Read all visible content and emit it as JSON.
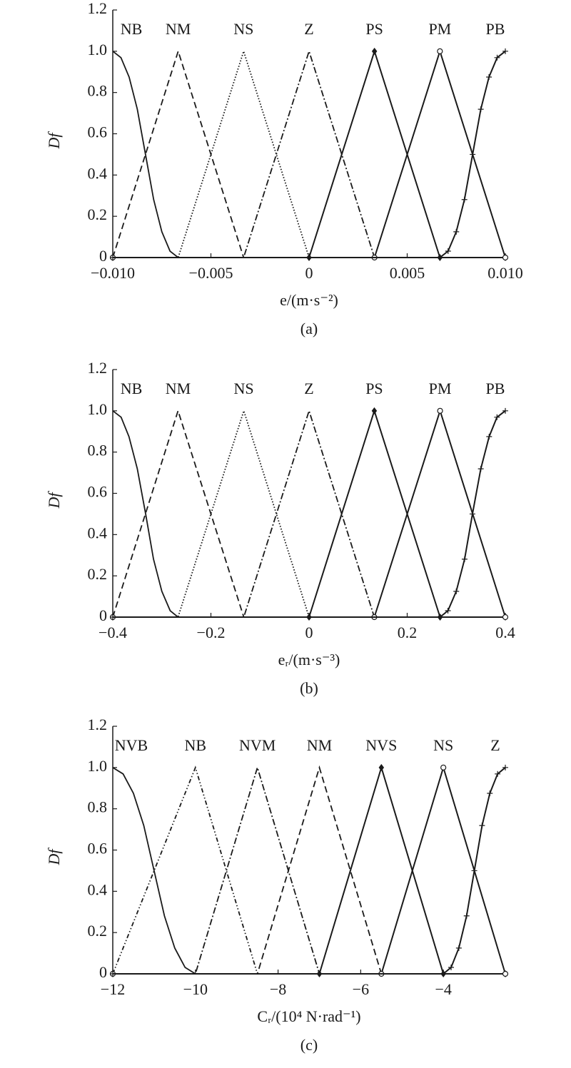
{
  "chart_data": [
    {
      "type": "line",
      "y_label": "Df",
      "x_label": "e/(m·s⁻²)",
      "caption": "(a)",
      "color": "#1a1a1a",
      "xlim": [
        -0.01,
        0.01
      ],
      "ylim": [
        0,
        1.2
      ],
      "xticks": [
        {
          "value": -0.01,
          "label": "−0.010"
        },
        {
          "value": -0.005,
          "label": "−0.005"
        },
        0,
        0.005,
        {
          "value": 0.01,
          "label": "0.010"
        }
      ],
      "yticks": [
        0,
        0.2,
        0.4,
        0.6,
        0.8,
        {
          "value": 1,
          "label": "1.0"
        },
        {
          "value": 1.2,
          "label": "1.2"
        }
      ],
      "series": [
        {
          "name": "NB",
          "style": "solid",
          "x": [
            -0.01,
            -0.009583,
            -0.009167,
            -0.00875,
            -0.008333,
            -0.007917,
            -0.0075,
            -0.007083,
            -0.006667,
            0.01
          ],
          "values": [
            1,
            0.969,
            0.875,
            0.719,
            0.5,
            0.281,
            0.125,
            0.031,
            0,
            0
          ]
        },
        {
          "name": "NM",
          "style": "dashed",
          "x": [
            -0.01,
            -0.006667,
            -0.003333,
            0.01
          ],
          "values": [
            0,
            1,
            0,
            0
          ]
        },
        {
          "name": "NS",
          "style": "dotted",
          "x": [
            -0.01,
            -0.006667,
            -0.003333,
            0,
            0.01
          ],
          "values": [
            0,
            0,
            1,
            0,
            0
          ]
        },
        {
          "name": "Z",
          "style": "dashdot",
          "x": [
            -0.01,
            -0.003333,
            0,
            0.003333,
            0.01
          ],
          "values": [
            0,
            0,
            1,
            0,
            0
          ]
        },
        {
          "name": "PS",
          "style": "solid",
          "marker": "diamond",
          "x": [
            -0.01,
            0,
            0.003333,
            0.006667,
            0.01
          ],
          "values": [
            0,
            0,
            1,
            0,
            0
          ]
        },
        {
          "name": "PM",
          "style": "solid",
          "marker": "circle",
          "x": [
            -0.01,
            0.003333,
            0.006667,
            0.01
          ],
          "values": [
            0,
            0,
            1,
            0
          ]
        },
        {
          "name": "PB",
          "style": "solid",
          "marker": "plus",
          "x": [
            -0.01,
            0.006667,
            0.007083,
            0.0075,
            0.007917,
            0.008333,
            0.00875,
            0.009167,
            0.009583,
            0.01
          ],
          "values": [
            0,
            0,
            0.031,
            0.125,
            0.281,
            0.5,
            0.719,
            0.875,
            0.969,
            1
          ]
        }
      ]
    },
    {
      "type": "line",
      "y_label": "Df",
      "x_label": "eᵣ/(m·s⁻³)",
      "caption": "(b)",
      "color": "#1a1a1a",
      "xlim": [
        -0.4,
        0.4
      ],
      "ylim": [
        0,
        1.2
      ],
      "xticks": [
        {
          "value": -0.4,
          "label": "−0.4"
        },
        {
          "value": -0.2,
          "label": "−0.2"
        },
        0,
        0.2,
        0.4
      ],
      "yticks": [
        0,
        0.2,
        0.4,
        0.6,
        0.8,
        {
          "value": 1,
          "label": "1.0"
        },
        {
          "value": 1.2,
          "label": "1.2"
        }
      ],
      "series": [
        {
          "name": "NB",
          "style": "solid",
          "x": [
            -0.4,
            -0.383,
            -0.367,
            -0.35,
            -0.333,
            -0.317,
            -0.3,
            -0.283,
            -0.267,
            0.4
          ],
          "values": [
            1,
            0.969,
            0.875,
            0.719,
            0.5,
            0.281,
            0.125,
            0.031,
            0,
            0
          ]
        },
        {
          "name": "NM",
          "style": "dashed",
          "x": [
            -0.4,
            -0.267,
            -0.133,
            0.4
          ],
          "values": [
            0,
            1,
            0,
            0
          ]
        },
        {
          "name": "NS",
          "style": "dotted",
          "x": [
            -0.4,
            -0.267,
            -0.133,
            0,
            0.4
          ],
          "values": [
            0,
            0,
            1,
            0,
            0
          ]
        },
        {
          "name": "Z",
          "style": "dashdot",
          "x": [
            -0.4,
            -0.133,
            0,
            0.133,
            0.4
          ],
          "values": [
            0,
            0,
            1,
            0,
            0
          ]
        },
        {
          "name": "PS",
          "style": "solid",
          "marker": "diamond",
          "x": [
            -0.4,
            0,
            0.133,
            0.267,
            0.4
          ],
          "values": [
            0,
            0,
            1,
            0,
            0
          ]
        },
        {
          "name": "PM",
          "style": "solid",
          "marker": "circle",
          "x": [
            -0.4,
            0.133,
            0.267,
            0.4
          ],
          "values": [
            0,
            0,
            1,
            0
          ]
        },
        {
          "name": "PB",
          "style": "solid",
          "marker": "plus",
          "x": [
            -0.4,
            0.267,
            0.283,
            0.3,
            0.317,
            0.333,
            0.35,
            0.367,
            0.383,
            0.4
          ],
          "values": [
            0,
            0,
            0.031,
            0.125,
            0.281,
            0.5,
            0.719,
            0.875,
            0.969,
            1
          ]
        }
      ]
    },
    {
      "type": "line",
      "y_label": "Df",
      "x_label": "Cᵣ/(10⁴ N·rad⁻¹)",
      "caption": "(c)",
      "color": "#1a1a1a",
      "xlim": [
        -12,
        -2.5
      ],
      "ylim": [
        0,
        1.2
      ],
      "xticks": [
        {
          "value": -12,
          "label": "−12"
        },
        {
          "value": -10,
          "label": "−10"
        },
        {
          "value": -8,
          "label": "−8"
        },
        {
          "value": -6,
          "label": "−6"
        },
        {
          "value": -4,
          "label": "−4"
        }
      ],
      "yticks": [
        0,
        0.2,
        0.4,
        0.6,
        0.8,
        {
          "value": 1,
          "label": "1.0"
        },
        {
          "value": 1.2,
          "label": "1.2"
        }
      ],
      "series": [
        {
          "name": "NVB",
          "style": "solid",
          "x": [
            -12,
            -11.75,
            -11.5,
            -11.25,
            -11,
            -10.75,
            -10.5,
            -10.25,
            -10,
            -2.5
          ],
          "values": [
            1,
            0.969,
            0.875,
            0.719,
            0.5,
            0.281,
            0.125,
            0.031,
            0,
            0
          ]
        },
        {
          "name": "NB",
          "style": "dashdotdot",
          "x": [
            -12,
            -10,
            -8.5,
            -2.5
          ],
          "values": [
            0,
            1,
            0,
            0
          ]
        },
        {
          "name": "NVM",
          "style": "dashdot",
          "x": [
            -12,
            -10,
            -8.5,
            -7,
            -2.5
          ],
          "values": [
            0,
            0,
            1,
            0,
            0
          ]
        },
        {
          "name": "NM",
          "style": "dashed",
          "x": [
            -12,
            -8.5,
            -7,
            -5.5,
            -2.5
          ],
          "values": [
            0,
            0,
            1,
            0,
            0
          ]
        },
        {
          "name": "NVS",
          "style": "solid",
          "marker": "diamond",
          "x": [
            -12,
            -7,
            -5.5,
            -4,
            -2.5
          ],
          "values": [
            0,
            0,
            1,
            0,
            0
          ]
        },
        {
          "name": "NS",
          "style": "solid",
          "marker": "circle",
          "x": [
            -12,
            -5.5,
            -4,
            -2.5
          ],
          "values": [
            0,
            0,
            1,
            0
          ]
        },
        {
          "name": "Z",
          "style": "solid",
          "marker": "plus",
          "x": [
            -12,
            -4,
            -3.8125,
            -3.625,
            -3.4375,
            -3.25,
            -3.0625,
            -2.875,
            -2.6875,
            -2.5
          ],
          "values": [
            0,
            0,
            0.031,
            0.125,
            0.281,
            0.5,
            0.719,
            0.875,
            0.969,
            1
          ]
        }
      ]
    }
  ]
}
